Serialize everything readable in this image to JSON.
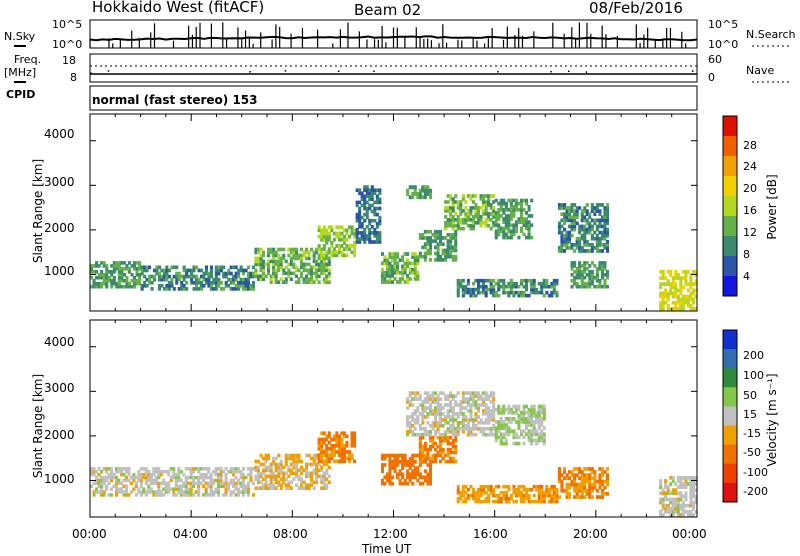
{
  "header": {
    "station": "Hokkaido West (fitACF)",
    "beam": "Beam 02",
    "date": "08/Feb/2016"
  },
  "aux_panels": {
    "nsky_label": "N.Sky",
    "nsky_ticks": [
      "10^5",
      "10^0"
    ],
    "nsearch_label": "N.Search",
    "nsearch_ticks": [
      "10^5",
      "10^0"
    ],
    "freq_label_line1": "Freq.",
    "freq_label_line2": "[MHz]",
    "freq_ticks": [
      "18",
      "8"
    ],
    "nave_label": "Nave",
    "nave_ticks": [
      "60",
      "0"
    ],
    "cpid_label": "CPID",
    "cpid_text": "normal (fast stereo) 153"
  },
  "x_axis": {
    "label": "Time UT",
    "ticks": [
      "00:00",
      "04:00",
      "08:00",
      "12:00",
      "16:00",
      "20:00",
      "00:00"
    ]
  },
  "chart_data": [
    {
      "type": "heatmap",
      "panel": "power",
      "ylabel": "Slant Range [km]",
      "xlabel": "Time UT",
      "xlim_hours": [
        0,
        24
      ],
      "ylim": [
        180,
        4600
      ],
      "y_ticks": [
        1000,
        2000,
        3000,
        4000
      ],
      "colorbar": {
        "label": "Power [dB]",
        "ticks": [
          "4",
          "8",
          "12",
          "16",
          "20",
          "24",
          "28"
        ],
        "colors": [
          "#1515e0",
          "#2a55a8",
          "#3c8a6e",
          "#66b04a",
          "#b4d820",
          "#f0d000",
          "#f0a000",
          "#f06000",
          "#e01000"
        ]
      },
      "echo_regions": [
        {
          "t0": 0.0,
          "t1": 2.0,
          "r0": 700,
          "r1": 1300,
          "value": 12
        },
        {
          "t0": 2.0,
          "t1": 6.5,
          "r0": 650,
          "r1": 1200,
          "value": 10
        },
        {
          "t0": 6.5,
          "t1": 9.5,
          "r0": 800,
          "r1": 1600,
          "value": 14
        },
        {
          "t0": 9.0,
          "t1": 10.5,
          "r0": 1400,
          "r1": 2100,
          "value": 16
        },
        {
          "t0": 10.5,
          "t1": 11.5,
          "r0": 1700,
          "r1": 3000,
          "value": 8
        },
        {
          "t0": 11.5,
          "t1": 13.0,
          "r0": 800,
          "r1": 1500,
          "value": 14
        },
        {
          "t0": 12.5,
          "t1": 13.5,
          "r0": 2700,
          "r1": 3000,
          "value": 12
        },
        {
          "t0": 13.0,
          "t1": 14.5,
          "r0": 1300,
          "r1": 2000,
          "value": 12
        },
        {
          "t0": 14.0,
          "t1": 16.0,
          "r0": 2000,
          "r1": 2800,
          "value": 14
        },
        {
          "t0": 14.5,
          "t1": 18.5,
          "r0": 500,
          "r1": 900,
          "value": 10
        },
        {
          "t0": 16.0,
          "t1": 17.5,
          "r0": 1800,
          "r1": 2700,
          "value": 12
        },
        {
          "t0": 18.5,
          "t1": 20.5,
          "r0": 1500,
          "r1": 2600,
          "value": 10
        },
        {
          "t0": 19.0,
          "t1": 20.5,
          "r0": 700,
          "r1": 1300,
          "value": 12
        },
        {
          "t0": 22.5,
          "t1": 24.0,
          "r0": 200,
          "r1": 1100,
          "value": 20
        }
      ]
    },
    {
      "type": "heatmap",
      "panel": "velocity",
      "ylabel": "Slant Range [km]",
      "xlabel": "Time UT",
      "xlim_hours": [
        0,
        24
      ],
      "ylim": [
        180,
        4600
      ],
      "y_ticks": [
        1000,
        2000,
        3000,
        4000
      ],
      "colorbar": {
        "label": "Velocity [m s⁻¹]",
        "ticks": [
          "200",
          "100",
          "50",
          "15",
          "-15",
          "-50",
          "-100",
          "-200"
        ],
        "colors": [
          "#1030d0",
          "#3070b0",
          "#2f8a3a",
          "#84c84a",
          "#c0c0c0",
          "#f0a000",
          "#f07000",
          "#f04000",
          "#e01010"
        ]
      },
      "echo_regions": [
        {
          "t0": 0.0,
          "t1": 6.5,
          "r0": 650,
          "r1": 1300,
          "value": 0
        },
        {
          "t0": 6.5,
          "t1": 9.5,
          "r0": 800,
          "r1": 1600,
          "value": -20
        },
        {
          "t0": 9.0,
          "t1": 10.5,
          "r0": 1400,
          "r1": 2100,
          "value": -60
        },
        {
          "t0": 11.5,
          "t1": 13.5,
          "r0": 900,
          "r1": 1600,
          "value": -80
        },
        {
          "t0": 13.0,
          "t1": 14.5,
          "r0": 1400,
          "r1": 2000,
          "value": -60
        },
        {
          "t0": 12.5,
          "t1": 16.0,
          "r0": 2000,
          "r1": 3000,
          "value": 0
        },
        {
          "t0": 14.5,
          "t1": 18.5,
          "r0": 500,
          "r1": 900,
          "value": -40
        },
        {
          "t0": 16.0,
          "t1": 18.0,
          "r0": 1800,
          "r1": 2700,
          "value": 20
        },
        {
          "t0": 18.5,
          "t1": 20.5,
          "r0": 600,
          "r1": 1300,
          "value": -50
        },
        {
          "t0": 22.5,
          "t1": 24.0,
          "r0": 200,
          "r1": 1100,
          "value": 0
        }
      ]
    }
  ]
}
